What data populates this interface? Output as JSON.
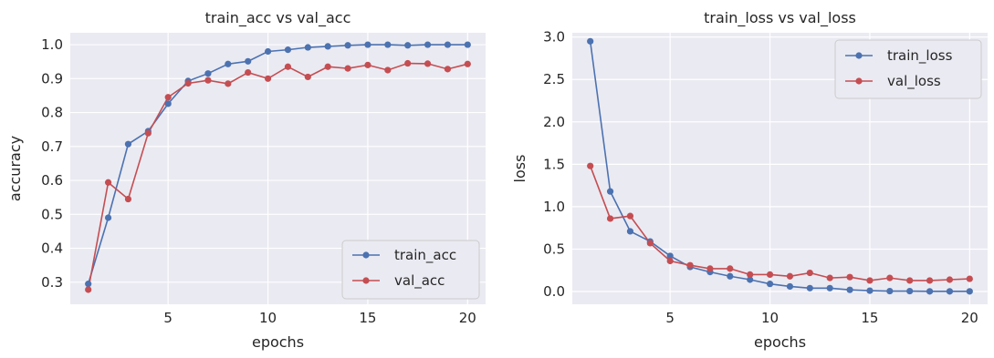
{
  "chart_data": [
    {
      "type": "line",
      "title": "train_acc vs val_acc",
      "xlabel": "epochs",
      "ylabel": "accuracy",
      "xlim": [
        0.1,
        20.9
      ],
      "ylim": [
        0.235,
        1.035
      ],
      "xticks": [
        5,
        10,
        15,
        20
      ],
      "yticks": [
        0.3,
        0.4,
        0.5,
        0.6,
        0.7,
        0.8,
        0.9,
        1.0
      ],
      "ytick_labels": [
        "0.3",
        "0.4",
        "0.5",
        "0.6",
        "0.7",
        "0.8",
        "0.9",
        "1.0"
      ],
      "grid": true,
      "legend_position": "lower-right",
      "x": [
        1,
        2,
        3,
        4,
        5,
        6,
        7,
        8,
        9,
        10,
        11,
        12,
        13,
        14,
        15,
        16,
        17,
        18,
        19,
        20
      ],
      "series": [
        {
          "name": "train_acc",
          "color": "#4c72b0",
          "values": [
            0.295,
            0.49,
            0.707,
            0.745,
            0.826,
            0.893,
            0.915,
            0.943,
            0.951,
            0.98,
            0.985,
            0.992,
            0.995,
            0.998,
            1.0,
            1.0,
            0.998,
            1.0,
            1.0,
            1.0
          ]
        },
        {
          "name": "val_acc",
          "color": "#c44e52",
          "values": [
            0.278,
            0.594,
            0.545,
            0.739,
            0.845,
            0.886,
            0.895,
            0.885,
            0.918,
            0.9,
            0.935,
            0.905,
            0.935,
            0.93,
            0.94,
            0.925,
            0.945,
            0.944,
            0.928,
            0.943
          ]
        }
      ]
    },
    {
      "type": "line",
      "title": "train_loss vs val_loss",
      "xlabel": "epochs",
      "ylabel": "loss",
      "xlim": [
        0.1,
        20.9
      ],
      "ylim": [
        -0.15,
        3.05
      ],
      "xticks": [
        5,
        10,
        15,
        20
      ],
      "yticks": [
        0.0,
        0.5,
        1.0,
        1.5,
        2.0,
        2.5,
        3.0
      ],
      "ytick_labels": [
        "0.0",
        "0.5",
        "1.0",
        "1.5",
        "2.0",
        "2.5",
        "3.0"
      ],
      "grid": true,
      "legend_position": "upper-right",
      "x": [
        1,
        2,
        3,
        4,
        5,
        6,
        7,
        8,
        9,
        10,
        11,
        12,
        13,
        14,
        15,
        16,
        17,
        18,
        19,
        20
      ],
      "series": [
        {
          "name": "train_loss",
          "color": "#4c72b0",
          "values": [
            2.95,
            1.18,
            0.71,
            0.59,
            0.42,
            0.29,
            0.23,
            0.18,
            0.14,
            0.09,
            0.06,
            0.04,
            0.04,
            0.02,
            0.01,
            0.005,
            0.005,
            0.002,
            0.002,
            0.002
          ]
        },
        {
          "name": "val_loss",
          "color": "#c44e52",
          "values": [
            1.48,
            0.86,
            0.89,
            0.57,
            0.36,
            0.31,
            0.27,
            0.27,
            0.2,
            0.2,
            0.18,
            0.22,
            0.16,
            0.17,
            0.13,
            0.16,
            0.13,
            0.13,
            0.14,
            0.15
          ]
        }
      ]
    }
  ]
}
